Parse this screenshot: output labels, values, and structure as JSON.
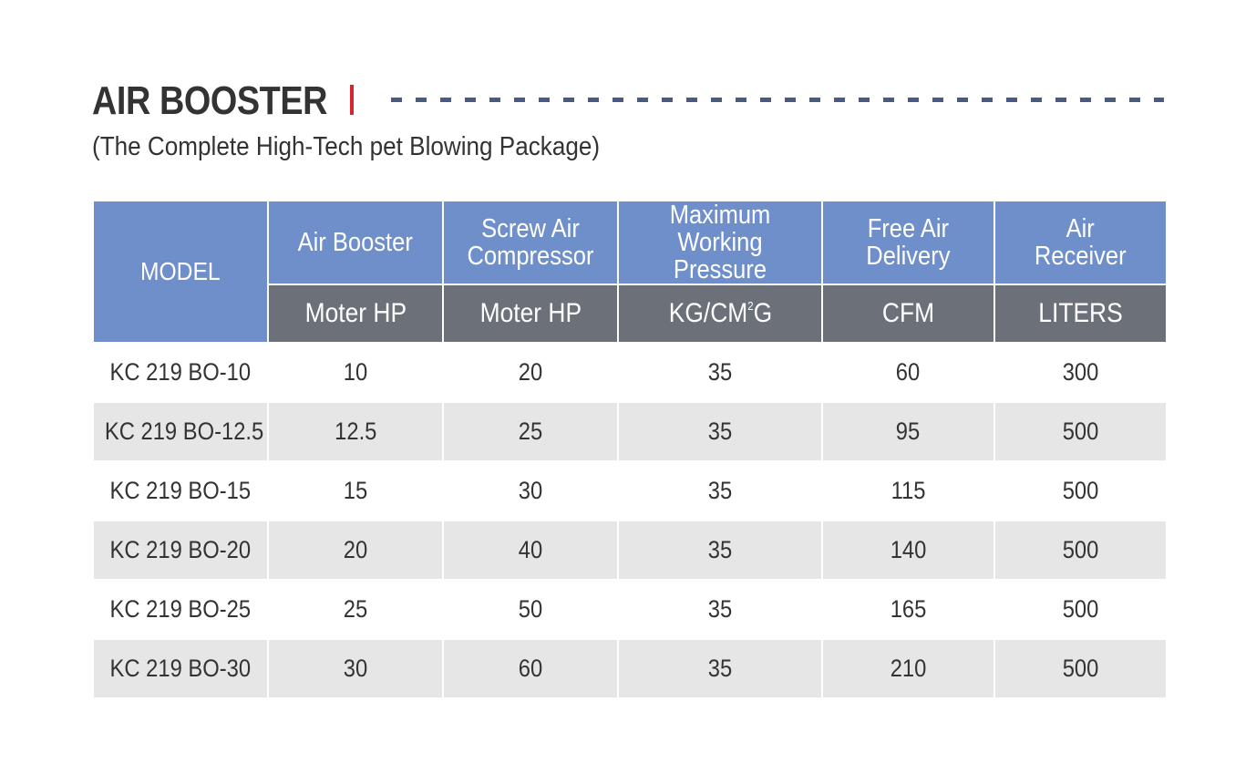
{
  "header": {
    "title": "AIR BOOSTER",
    "subtitle": "(The Complete High-Tech pet Blowing Package)"
  },
  "table": {
    "model_header": "MODEL",
    "columns": [
      {
        "title_line1": "Air Booster",
        "title_line2": "",
        "unit": "Moter HP"
      },
      {
        "title_line1": "Screw Air",
        "title_line2": "Compressor",
        "unit": "Moter HP"
      },
      {
        "title_line1": "Maximum",
        "title_line2": "Working Pressure",
        "unit_before": "KG/CM",
        "unit_sup": "2",
        "unit_after": "G"
      },
      {
        "title_line1": "Free Air",
        "title_line2": "Delivery",
        "unit": "CFM"
      },
      {
        "title_line1": "Air",
        "title_line2": "Receiver",
        "unit": "LITERS"
      }
    ],
    "rows": [
      {
        "model": "KC 219 BO-10",
        "values": [
          "10",
          "20",
          "35",
          "60",
          "300"
        ]
      },
      {
        "model": "KC 219 BO-12.5",
        "values": [
          "12.5",
          "25",
          "35",
          "95",
          "500"
        ]
      },
      {
        "model": "KC 219 BO-15",
        "values": [
          "15",
          "30",
          "35",
          "115",
          "500"
        ]
      },
      {
        "model": "KC 219 BO-20",
        "values": [
          "20",
          "40",
          "35",
          "140",
          "500"
        ]
      },
      {
        "model": "KC 219 BO-25",
        "values": [
          "25",
          "50",
          "35",
          "165",
          "500"
        ]
      },
      {
        "model": "KC 219 BO-30",
        "values": [
          "30",
          "60",
          "35",
          "210",
          "500"
        ]
      }
    ]
  },
  "colors": {
    "header_blue": "#6f8fca",
    "unit_gray": "#6c7079",
    "row_shade": "#e6e6e6",
    "accent_red": "#d7262e",
    "dash_blue": "#4a5a80"
  }
}
